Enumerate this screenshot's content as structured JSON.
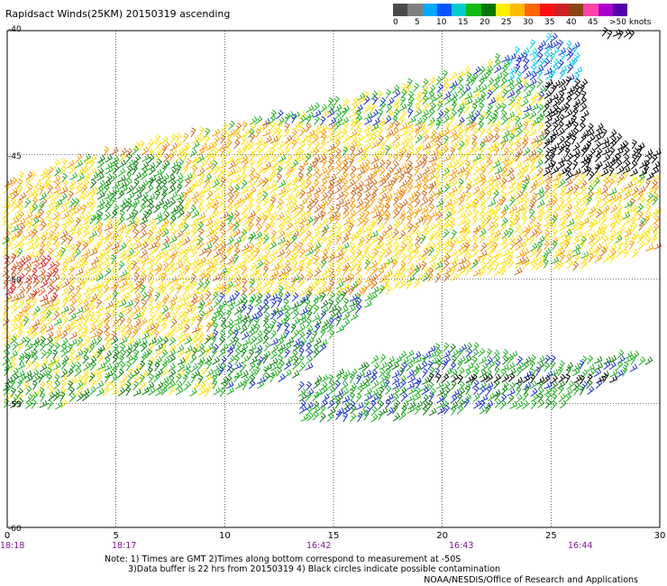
{
  "title": "Rapidsact Winds(25KM) 20150319 ascending",
  "scale": {
    "colors": [
      "#4a4a4a",
      "#7e7e7e",
      "#00aaff",
      "#0055ff",
      "#00cccc",
      "#11bb11",
      "#007700",
      "#ffee00",
      "#ffbb00",
      "#ff6600",
      "#ff1111",
      "#cc2222",
      "#8b4513",
      "#ff44aa",
      "#aa00cc",
      "#5500aa"
    ],
    "labels": [
      "0",
      "5",
      "10",
      "15",
      "20",
      "25",
      "30",
      "35",
      "40",
      "45",
      ">50 knots"
    ]
  },
  "x_ticks": [
    "0",
    "5",
    "10",
    "15",
    "20",
    "25",
    "30"
  ],
  "y_ticks": [
    "-40",
    "-45",
    "-50",
    "-55",
    "-60"
  ],
  "times": [
    "18:18",
    "18:17",
    "16:42",
    "16:43",
    "16:44"
  ],
  "notes": {
    "line1": "Note: 1) Times are GMT 2)Times along bottom correspond to measurement at -50S",
    "line2": "3)Data buffer is 22 hrs from 20150319 4) Black circles indicate possible contamination",
    "credit": "NOAA/NESDIS/Office of Research and Applications"
  },
  "wind_colors": {
    "black": "#000000",
    "cyan": "#00ccee",
    "blue": "#1a2ed8",
    "green": "#1fb01f",
    "dark_green": "#0a7a0a",
    "yellow": "#ffe000",
    "orange": "#ff9a00",
    "rust": "#d2691e",
    "red": "#e8202a"
  }
}
